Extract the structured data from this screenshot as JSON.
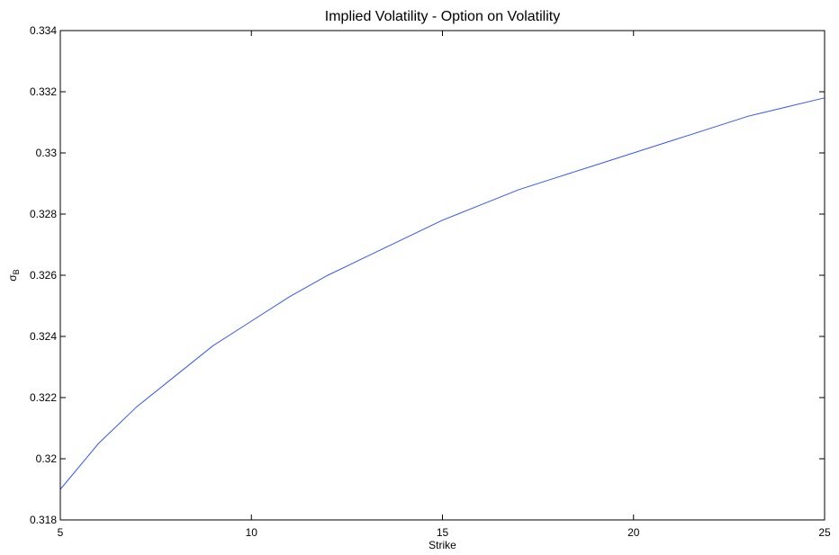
{
  "chart_data": {
    "type": "line",
    "title": "Implied Volatility - Option on Volatility",
    "xlabel": "Strike",
    "ylabel": "σ",
    "ylabel_subscript": "B",
    "xlim": [
      5,
      25
    ],
    "ylim": [
      0.318,
      0.334
    ],
    "xticks": [
      5,
      10,
      15,
      20,
      25
    ],
    "xtick_labels": [
      "5",
      "10",
      "15",
      "20",
      "25"
    ],
    "yticks": [
      0.318,
      0.32,
      0.322,
      0.324,
      0.326,
      0.328,
      0.33,
      0.332,
      0.334
    ],
    "ytick_labels": [
      "0.318",
      "0.32",
      "0.322",
      "0.324",
      "0.326",
      "0.328",
      "0.33",
      "0.332",
      "0.334"
    ],
    "grid": false,
    "legend": "none",
    "series": [
      {
        "color": "#3355ff",
        "x": [
          5,
          6,
          7,
          8,
          9,
          10,
          11,
          12,
          13,
          14,
          15,
          16,
          17,
          18,
          19,
          20,
          21,
          22,
          23,
          24,
          25
        ],
        "y": [
          0.319,
          0.3205,
          0.3217,
          0.3227,
          0.3237,
          0.3245,
          0.3253,
          0.326,
          0.3266,
          0.3272,
          0.3278,
          0.3283,
          0.3288,
          0.3292,
          0.3296,
          0.33,
          0.3304,
          0.3308,
          0.3312,
          0.3315,
          0.3318
        ]
      }
    ]
  }
}
